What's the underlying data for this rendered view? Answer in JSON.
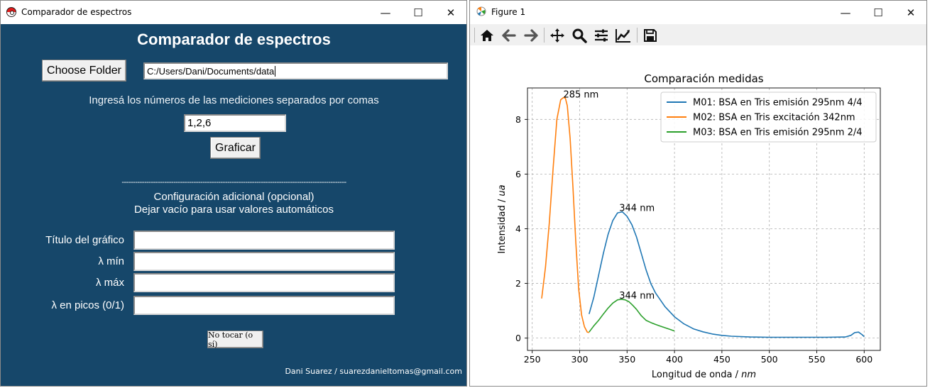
{
  "left_window": {
    "title": "Comparador de espectros",
    "controls": {
      "minimize": "—",
      "maximize": "☐",
      "close": "✕"
    },
    "heading": "Comparador de espectros",
    "choose_folder_label": "Choose Folder",
    "folder_path": "C:/Users/Dani/Documents/data",
    "instruction": "Ingresá los números de las mediciones separados por comas",
    "measurements_value": "1,2,6",
    "plot_button_label": "Graficar",
    "divider": "----------------------------------------------------------------------------------------------------",
    "config_title": "Configuración adicional (opcional)",
    "config_subtitle": "Dejar vacío para usar valores automáticos",
    "fields": [
      {
        "label": "Título del gráfico",
        "value": ""
      },
      {
        "label": "λ mín",
        "value": ""
      },
      {
        "label": "λ máx",
        "value": ""
      },
      {
        "label": "λ en picos (0/1)",
        "value": ""
      }
    ],
    "no_touch_button_label": "No tocar (o sí)",
    "footer": "Dani Suarez / suarezdanieltomas@gmail.com",
    "colors": {
      "background": "#16476a"
    }
  },
  "right_window": {
    "title": "Figure 1",
    "controls": {
      "minimize": "—",
      "maximize": "☐",
      "close": "✕"
    },
    "toolbar_icons": [
      "home-icon",
      "back-arrow-icon",
      "forward-arrow-icon",
      "pan-icon",
      "zoom-icon",
      "configure-subplots-icon",
      "edit-axis-icon",
      "save-icon"
    ]
  },
  "chart_data": {
    "type": "line",
    "title": "Comparación medidas",
    "xlabel": "Longitud de onda / ",
    "xlabel_italic": "nm",
    "ylabel": "Intensidad / ",
    "ylabel_italic": "ua",
    "xlim": [
      245,
      617
    ],
    "ylim": [
      -0.45,
      9.15
    ],
    "xticks": [
      250,
      300,
      350,
      400,
      450,
      500,
      550,
      600
    ],
    "yticks": [
      0,
      2,
      4,
      6,
      8
    ],
    "grid": true,
    "legend_position": "top-right",
    "series": [
      {
        "name": "M01: BSA en Tris emisión 295nm 4/4",
        "color": "#1f77b4",
        "x": [
          310,
          315,
          320,
          325,
          330,
          335,
          340,
          345,
          350,
          355,
          360,
          365,
          370,
          375,
          380,
          390,
          400,
          410,
          420,
          430,
          440,
          450,
          460,
          480,
          500,
          520,
          540,
          560,
          580,
          586,
          590,
          594,
          598,
          600
        ],
        "y": [
          0.88,
          1.5,
          2.3,
          3.1,
          3.8,
          4.3,
          4.58,
          4.62,
          4.45,
          4.15,
          3.7,
          3.1,
          2.5,
          2.0,
          1.65,
          1.15,
          0.78,
          0.52,
          0.34,
          0.23,
          0.15,
          0.1,
          0.07,
          0.04,
          0.03,
          0.03,
          0.03,
          0.03,
          0.04,
          0.1,
          0.2,
          0.22,
          0.12,
          0.05
        ]
      },
      {
        "name": "M02: BSA en Tris excitación 342nm",
        "color": "#ff7f0e",
        "x": [
          260,
          264,
          268,
          272,
          276,
          280,
          283,
          285,
          287,
          290,
          293,
          296,
          299,
          302,
          305,
          308,
          310
        ],
        "y": [
          1.45,
          2.6,
          4.2,
          6.2,
          8.0,
          8.72,
          8.8,
          8.78,
          8.5,
          7.3,
          5.5,
          3.5,
          1.8,
          0.85,
          0.42,
          0.22,
          0.2
        ]
      },
      {
        "name": "M03: BSA en Tris emisión 295nm 2/4",
        "color": "#2ca02c",
        "x": [
          310,
          315,
          320,
          325,
          330,
          335,
          340,
          344,
          348,
          352,
          356,
          360,
          365,
          370,
          375,
          380,
          385,
          390,
          395,
          400
        ],
        "y": [
          0.22,
          0.45,
          0.65,
          0.88,
          1.1,
          1.28,
          1.4,
          1.42,
          1.4,
          1.33,
          1.2,
          1.05,
          0.82,
          0.65,
          0.57,
          0.5,
          0.44,
          0.38,
          0.32,
          0.26
        ]
      }
    ],
    "annotations": [
      {
        "x": 285,
        "y": 8.78,
        "text": "285 nm"
      },
      {
        "x": 344,
        "y": 4.62,
        "text": "344 nm"
      },
      {
        "x": 344,
        "y": 1.42,
        "text": "344 nm"
      }
    ]
  }
}
